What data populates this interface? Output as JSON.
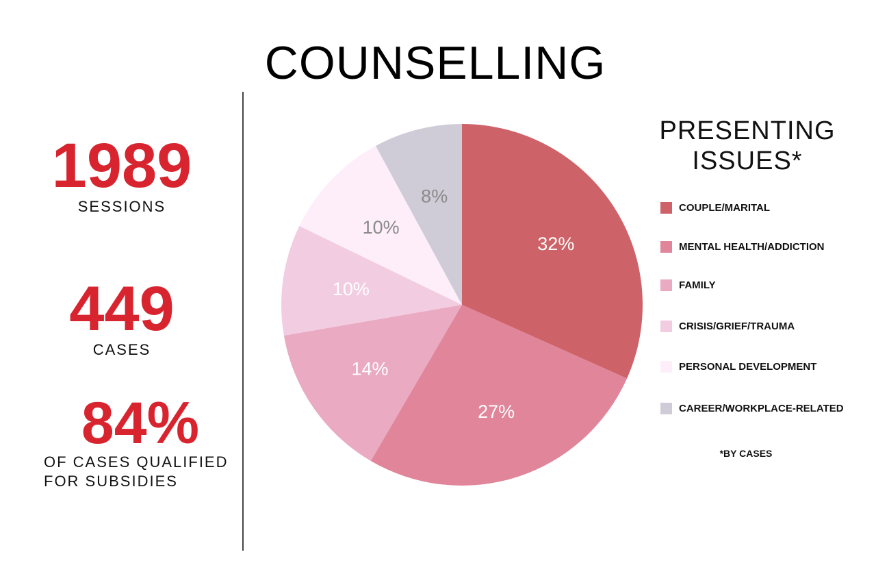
{
  "page": {
    "title": "COUNSELLING"
  },
  "stats": {
    "sessions": {
      "value": "1989",
      "label": "SESSIONS"
    },
    "cases": {
      "value": "449",
      "label": "CASES"
    },
    "subsidy": {
      "value": "84%",
      "label_line1": "OF CASES QUALIFIED",
      "label_line2": "FOR SUBSIDIES"
    }
  },
  "colors": {
    "accent": "#d8242f"
  },
  "chart_data": {
    "type": "pie",
    "title": "PRESENTING ISSUES*",
    "footnote": "*BY CASES",
    "legend_position": "right",
    "start_angle": "12 o'clock",
    "direction": "clockwise",
    "slices": [
      {
        "label": "COUPLE/MARITAL",
        "value": 32,
        "value_label": "32%",
        "color": "#cd6368",
        "label_color": "#ffffff"
      },
      {
        "label": "MENTAL HEALTH/ADDICTION",
        "value": 27,
        "value_label": "27%",
        "color": "#e0859a",
        "label_color": "#ffffff"
      },
      {
        "label": "FAMILY",
        "value": 14,
        "value_label": "14%",
        "color": "#e9aac2",
        "label_color": "#ffffff"
      },
      {
        "label": "CRISIS/GRIEF/TRAUMA",
        "value": 10,
        "value_label": "10%",
        "color": "#f2cde2",
        "label_color": "#ffffff"
      },
      {
        "label": "PERSONAL DEVELOPMENT",
        "value": 10,
        "value_label": "10%",
        "color": "#fdeefa",
        "label_color": "#8a8a8a"
      },
      {
        "label": "CAREER/WORKPLACE-RELATED",
        "value": 8,
        "value_label": "8%",
        "color": "#cfccd8",
        "label_color": "#8a8a8a"
      }
    ]
  }
}
